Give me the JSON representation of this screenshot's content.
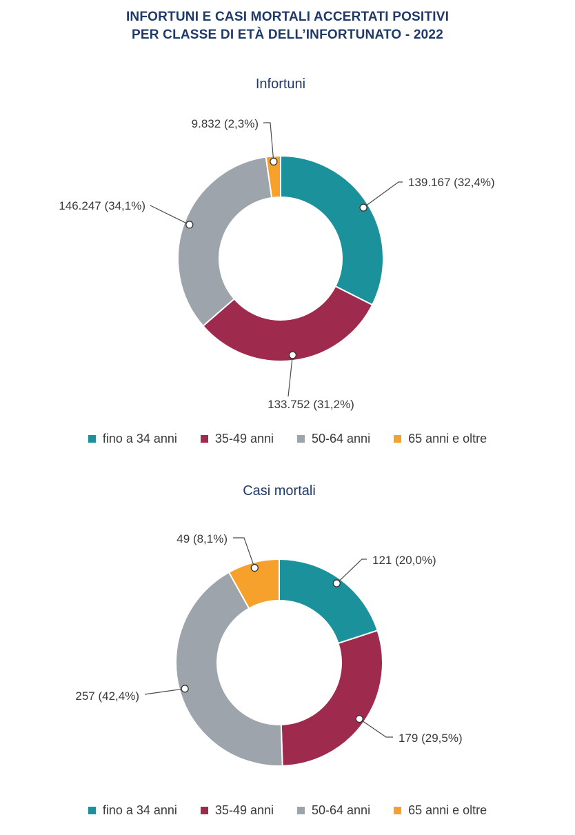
{
  "title": {
    "line1": "INFORTUNI E CASI MORTALI ACCERTATI POSITIVI",
    "line2": "PER CLASSE DI ETÀ DELL’INFORTUNATO - 2022"
  },
  "colors": {
    "fino_a_34": "#1a919b",
    "35_49": "#9e2b4d",
    "50_64": "#9ea4ab",
    "65_oltre": "#f5a12b"
  },
  "legend": [
    {
      "label": "fino a 34 anni",
      "color": "#1a919b"
    },
    {
      "label": "35-49 anni",
      "color": "#9e2b4d"
    },
    {
      "label": "50-64 anni",
      "color": "#9ea4ab"
    },
    {
      "label": "65 anni e oltre",
      "color": "#f5a12b"
    }
  ],
  "chart_data": [
    {
      "type": "pie",
      "donut": true,
      "title": "Infortuni",
      "categories": [
        "fino a 34 anni",
        "35-49 anni",
        "50-64 anni",
        "65 anni e oltre"
      ],
      "values": [
        139167,
        133752,
        146247,
        9832
      ],
      "data_labels": [
        "139.167 (32,4%)",
        "133.752 (31,2%)",
        "146.247 (34,1%)",
        "9.832 (2,3%)"
      ],
      "colors": [
        "#1a919b",
        "#9e2b4d",
        "#9ea4ab",
        "#f5a12b"
      ],
      "legend_position": "bottom"
    },
    {
      "type": "pie",
      "donut": true,
      "title": "Casi mortali",
      "categories": [
        "fino a 34 anni",
        "35-49 anni",
        "50-64 anni",
        "65 anni e oltre"
      ],
      "values": [
        121,
        179,
        257,
        49
      ],
      "data_labels": [
        "121 (20,0%)",
        "179 (29,5%)",
        "257 (42,4%)",
        "49 (8,1%)"
      ],
      "colors": [
        "#1a919b",
        "#9e2b4d",
        "#9ea4ab",
        "#f5a12b"
      ],
      "legend_position": "bottom"
    }
  ]
}
